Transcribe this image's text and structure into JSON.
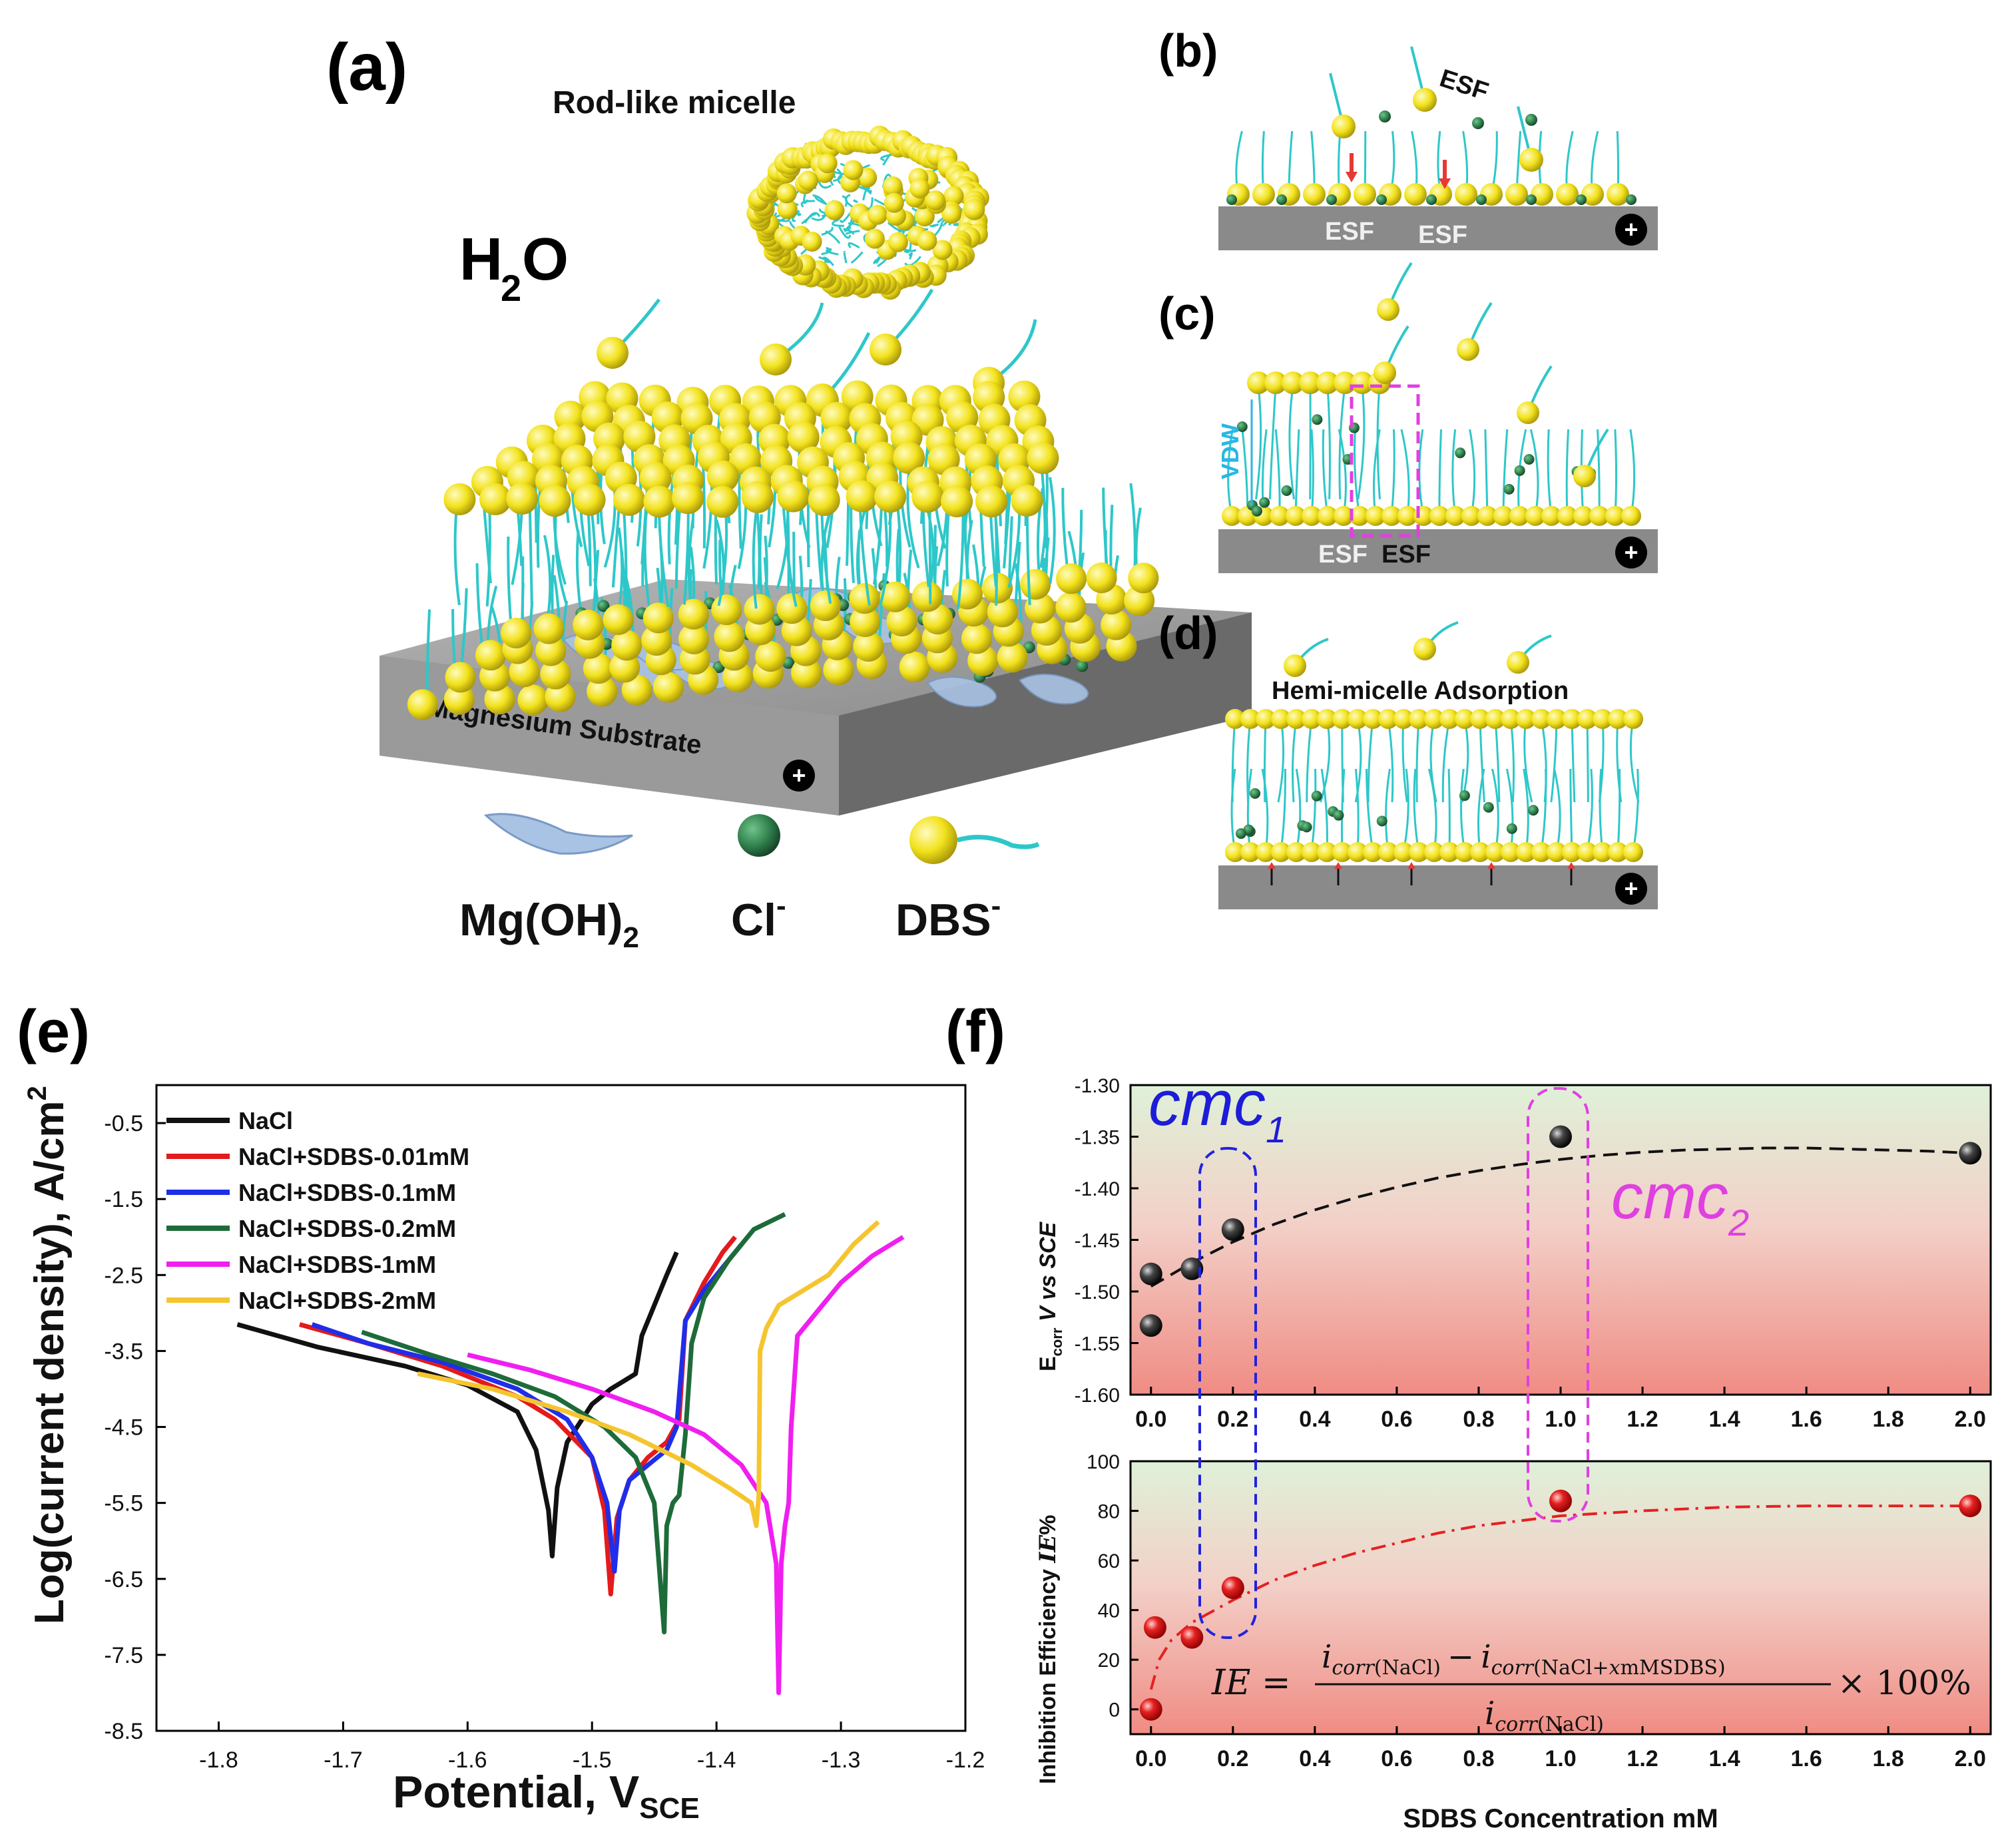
{
  "panel_labels": {
    "a": "(a)",
    "b": "(b)",
    "c": "(c)",
    "d": "(d)",
    "e": "(e)",
    "f": "(f)"
  },
  "schematic": {
    "rod_micelle": "Rod-like micelle",
    "water": "H",
    "water_sub": "2",
    "water_o": "O",
    "substrate": "Magnesium Substrate",
    "plus": "+",
    "legend": {
      "mgoh2": "Mg(OH)",
      "mgoh2_sub": "2",
      "cl": "Cl",
      "cl_sup": "-",
      "dbs": "DBS",
      "dbs_sup": "-"
    },
    "esf": "ESF",
    "vdw": "VDW",
    "hemi": "Hemi-micelle Adsorption"
  },
  "colors": {
    "ball": "#f2e21b",
    "tail": "#2ec7c9",
    "cl": "#2e7d4a",
    "substrate": "#8a8a8a",
    "mgoh2": "#a9c3e4",
    "vdw": "#2ab6e6",
    "dash_blue": "#2222dd",
    "dash_mag": "#e040e0"
  },
  "chart_data": [
    {
      "type": "line",
      "title": "",
      "xlabel_main": "Potential, V",
      "xlabel_sub": "SCE",
      "ylabel": "Log(current density), A/cm",
      "ylabel_sup": "2",
      "xlim": [
        -1.85,
        -1.2
      ],
      "ylim": [
        -8.5,
        0
      ],
      "xticks": [
        "-1.8",
        "-1.7",
        "-1.6",
        "-1.5",
        "-1.4",
        "-1.3",
        "-1.2"
      ],
      "yticks": [
        "-0.5",
        "-1.5",
        "-2.5",
        "-3.5",
        "-4.5",
        "-5.5",
        "-6.5",
        "-7.5",
        "-8.5"
      ],
      "series": [
        {
          "name": "NaCl",
          "color": "#111111",
          "x": [
            -1.785,
            -1.72,
            -1.65,
            -1.6,
            -1.56,
            -1.545,
            -1.535,
            -1.532,
            -1.528,
            -1.52,
            -1.5,
            -1.485,
            -1.475,
            -1.465,
            -1.46,
            -1.45,
            -1.44,
            -1.432
          ],
          "y": [
            -3.15,
            -3.45,
            -3.7,
            -3.95,
            -4.3,
            -4.8,
            -5.6,
            -6.2,
            -5.3,
            -4.7,
            -4.2,
            -4.0,
            -3.9,
            -3.8,
            -3.3,
            -2.9,
            -2.5,
            -2.2
          ]
        },
        {
          "name": "NaCl+SDBS-0.01mM",
          "color": "#e41a1c",
          "x": [
            -1.735,
            -1.68,
            -1.62,
            -1.56,
            -1.53,
            -1.5,
            -1.49,
            -1.485,
            -1.48,
            -1.47,
            -1.455,
            -1.44,
            -1.43,
            -1.425,
            -1.41,
            -1.395,
            -1.385
          ],
          "y": [
            -3.15,
            -3.4,
            -3.7,
            -4.1,
            -4.4,
            -4.9,
            -5.6,
            -6.7,
            -5.7,
            -5.2,
            -4.9,
            -4.7,
            -4.4,
            -3.1,
            -2.6,
            -2.2,
            -2.0
          ]
        },
        {
          "name": "NaCl+SDBS-0.1mM",
          "color": "#1f2ee8",
          "x": [
            -1.725,
            -1.68,
            -1.62,
            -1.56,
            -1.52,
            -1.5,
            -1.488,
            -1.482,
            -1.478,
            -1.47,
            -1.455,
            -1.44,
            -1.432,
            -1.425,
            -1.41,
            -1.395,
            -1.38
          ],
          "y": [
            -3.15,
            -3.4,
            -3.65,
            -4.0,
            -4.4,
            -4.9,
            -5.5,
            -6.4,
            -5.6,
            -5.2,
            -5.0,
            -4.8,
            -4.5,
            -3.1,
            -2.7,
            -2.4,
            -2.1
          ]
        },
        {
          "name": "NaCl+SDBS-0.2mM",
          "color": "#1e6b3a",
          "x": [
            -1.685,
            -1.63,
            -1.58,
            -1.53,
            -1.49,
            -1.465,
            -1.45,
            -1.442,
            -1.44,
            -1.435,
            -1.43,
            -1.425,
            -1.42,
            -1.41,
            -1.39,
            -1.37,
            -1.345
          ],
          "y": [
            -3.25,
            -3.55,
            -3.8,
            -4.1,
            -4.5,
            -4.9,
            -5.5,
            -7.2,
            -5.8,
            -5.5,
            -5.4,
            -4.6,
            -3.4,
            -2.8,
            -2.3,
            -1.9,
            -1.7
          ]
        },
        {
          "name": "NaCl+SDBS-1mM",
          "color": "#f01ff0",
          "x": [
            -1.6,
            -1.55,
            -1.5,
            -1.45,
            -1.41,
            -1.38,
            -1.36,
            -1.352,
            -1.35,
            -1.348,
            -1.345,
            -1.342,
            -1.34,
            -1.335,
            -1.32,
            -1.3,
            -1.275,
            -1.25
          ],
          "y": [
            -3.55,
            -3.75,
            -4.0,
            -4.3,
            -4.6,
            -5.0,
            -5.5,
            -6.3,
            -8.0,
            -6.3,
            -5.8,
            -5.5,
            -4.5,
            -3.3,
            -3.0,
            -2.6,
            -2.25,
            -2.0
          ]
        },
        {
          "name": "NaCl+SDBS-2mM",
          "color": "#f5c530",
          "x": [
            -1.64,
            -1.58,
            -1.52,
            -1.47,
            -1.42,
            -1.39,
            -1.372,
            -1.368,
            -1.366,
            -1.365,
            -1.36,
            -1.35,
            -1.33,
            -1.31,
            -1.29,
            -1.27
          ],
          "y": [
            -3.8,
            -4.0,
            -4.3,
            -4.6,
            -5.0,
            -5.3,
            -5.5,
            -5.8,
            -5.4,
            -3.5,
            -3.2,
            -2.9,
            -2.7,
            -2.5,
            -2.1,
            -1.8
          ]
        }
      ]
    },
    {
      "type": "scatter",
      "title": "",
      "ylabel_main": "E",
      "ylabel_sub": "corr",
      "ylabel_rest": " V vs SCE",
      "xlim": [
        -0.05,
        2.05
      ],
      "ylim": [
        -1.6,
        -1.3
      ],
      "xticks": [
        "0.0",
        "0.2",
        "0.4",
        "0.6",
        "0.8",
        "1.0",
        "1.2",
        "1.4",
        "1.6",
        "1.8",
        "2.0"
      ],
      "yticks": [
        "-1.30",
        "-1.35",
        "-1.40",
        "-1.45",
        "-1.50",
        "-1.55",
        "-1.60"
      ],
      "x": [
        0.0,
        0.0,
        0.1,
        0.2,
        1.0,
        2.0
      ],
      "y": [
        -1.533,
        -1.483,
        -1.478,
        -1.44,
        -1.35,
        -1.366
      ],
      "fit_x": [
        0.0,
        0.1,
        0.2,
        0.3,
        0.4,
        0.5,
        0.6,
        0.7,
        0.8,
        0.9,
        1.0,
        1.1,
        1.2,
        1.3,
        1.4,
        1.5,
        1.6,
        1.7,
        1.8,
        1.9,
        2.0
      ],
      "fit_y": [
        -1.495,
        -1.472,
        -1.452,
        -1.435,
        -1.421,
        -1.409,
        -1.399,
        -1.39,
        -1.383,
        -1.377,
        -1.372,
        -1.368,
        -1.365,
        -1.363,
        -1.362,
        -1.361,
        -1.361,
        -1.362,
        -1.363,
        -1.364,
        -1.366
      ],
      "annotation_cmc1_main": "cmc",
      "annotation_cmc1_sub": "1",
      "annotation_cmc2_main": "cmc",
      "annotation_cmc2_sub": "2"
    },
    {
      "type": "scatter",
      "title": "",
      "xlabel": "SDBS Concentration mM",
      "ylabel_main": "Inhibition Efficiency ",
      "ylabel_italic": "IE",
      "ylabel_end": "%",
      "xlim": [
        -0.05,
        2.05
      ],
      "ylim": [
        -10,
        100
      ],
      "xticks": [
        "0.0",
        "0.2",
        "0.4",
        "0.6",
        "0.8",
        "1.0",
        "1.2",
        "1.4",
        "1.6",
        "1.8",
        "2.0"
      ],
      "yticks": [
        "100",
        "80",
        "60",
        "40",
        "20",
        "0"
      ],
      "x": [
        0.0,
        0.01,
        0.1,
        0.2,
        1.0,
        2.0
      ],
      "y": [
        0,
        33,
        29,
        49,
        84,
        82
      ],
      "fit_x": [
        0.0,
        0.02,
        0.05,
        0.1,
        0.2,
        0.3,
        0.4,
        0.5,
        0.6,
        0.7,
        0.8,
        0.9,
        1.0,
        1.2,
        1.4,
        1.6,
        1.8,
        2.0
      ],
      "fit_y": [
        8,
        20,
        28,
        35,
        44,
        52,
        58,
        63,
        67,
        71,
        74,
        76,
        78,
        80,
        81.5,
        82,
        82,
        82
      ],
      "equation": {
        "lhs": "IE =",
        "num_a": "i",
        "num_a_sub": "corr",
        "num_a_paren": "(NaCl)",
        "minus": "−",
        "num_b": "i",
        "num_b_sub": "corr",
        "num_b_paren": "(NaCl+",
        "num_b_x": "x",
        "num_b_rest": "mMSDBS)",
        "den": "i",
        "den_sub": "corr",
        "den_paren": "(NaCl)",
        "tail": "× 100%"
      }
    }
  ]
}
